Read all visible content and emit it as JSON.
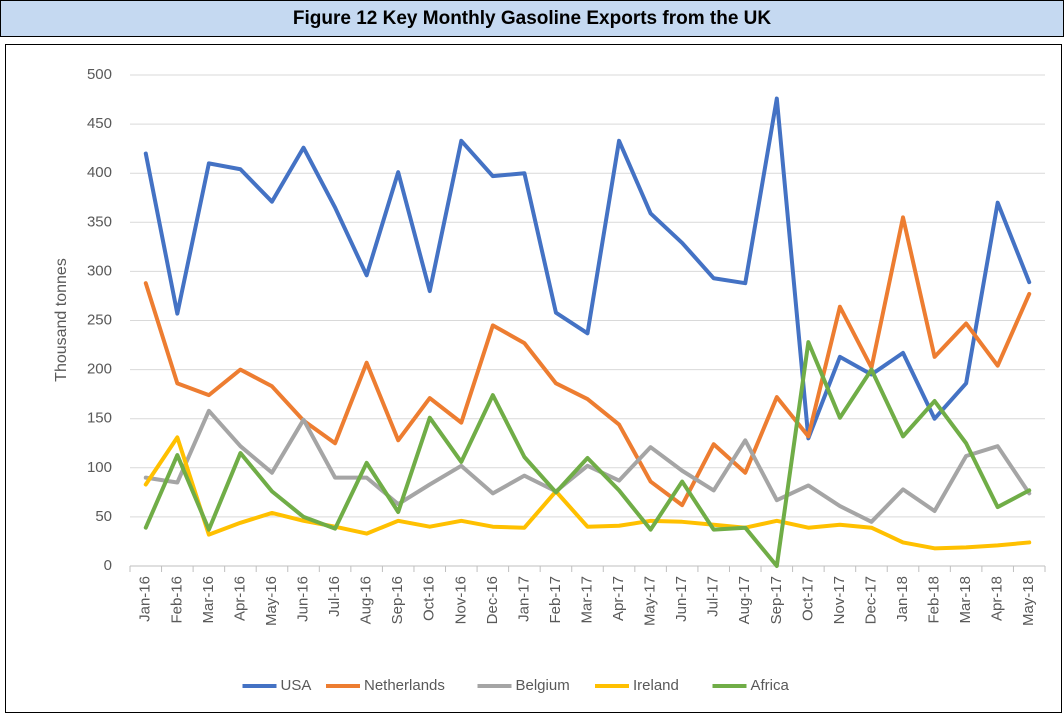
{
  "chart_data": {
    "type": "line",
    "title": "Figure 12 Key Monthly Gasoline Exports from the UK",
    "y_label": "Thousand tonnes",
    "categories": [
      "Jan-16",
      "Feb-16",
      "Mar-16",
      "Apr-16",
      "May-16",
      "Jun-16",
      "Jul-16",
      "Aug-16",
      "Sep-16",
      "Oct-16",
      "Nov-16",
      "Dec-16",
      "Jan-17",
      "Feb-17",
      "Mar-17",
      "Apr-17",
      "May-17",
      "Jun-17",
      "Jul-17",
      "Aug-17",
      "Sep-17",
      "Oct-17",
      "Nov-17",
      "Dec-17",
      "Jan-18",
      "Feb-18",
      "Mar-18",
      "Apr-18",
      "May-18"
    ],
    "series": [
      {
        "name": "USA",
        "color": "#4472c4",
        "values": [
          420,
          257,
          410,
          404,
          371,
          426,
          365,
          296,
          401,
          280,
          433,
          397,
          400,
          258,
          237,
          433,
          359,
          329,
          293,
          288,
          476,
          130,
          213,
          195,
          217,
          150,
          186,
          370,
          289
        ]
      },
      {
        "name": "Netherlands",
        "color": "#ed7d31",
        "values": [
          288,
          186,
          174,
          200,
          183,
          148,
          125,
          207,
          128,
          171,
          146,
          245,
          227,
          186,
          170,
          144,
          86,
          62,
          124,
          95,
          172,
          132,
          264,
          202,
          355,
          213,
          247,
          204,
          277
        ]
      },
      {
        "name": "Belgium",
        "color": "#a5a5a5",
        "values": [
          90,
          85,
          158,
          122,
          95,
          149,
          90,
          90,
          63,
          83,
          102,
          74,
          92,
          76,
          102,
          87,
          121,
          97,
          77,
          128,
          67,
          82,
          61,
          45,
          78,
          56,
          112,
          122,
          74
        ]
      },
      {
        "name": "Ireland",
        "color": "#ffc000",
        "values": [
          83,
          131,
          32,
          44,
          54,
          46,
          40,
          33,
          46,
          40,
          46,
          40,
          39,
          76,
          40,
          41,
          46,
          45,
          42,
          39,
          46,
          39,
          42,
          39,
          24,
          18,
          19,
          21,
          24
        ]
      },
      {
        "name": "Africa",
        "color": "#70ad47",
        "values": [
          39,
          113,
          37,
          115,
          76,
          50,
          38,
          105,
          55,
          151,
          106,
          174,
          111,
          75,
          110,
          77,
          37,
          86,
          37,
          39,
          0,
          228,
          151,
          200,
          132,
          168,
          125,
          60,
          77
        ]
      }
    ],
    "ylim": [
      0,
      500
    ],
    "yticks": [
      0,
      50,
      100,
      150,
      200,
      250,
      300,
      350,
      400,
      450,
      500
    ],
    "grid": true,
    "legend": "bottom"
  }
}
